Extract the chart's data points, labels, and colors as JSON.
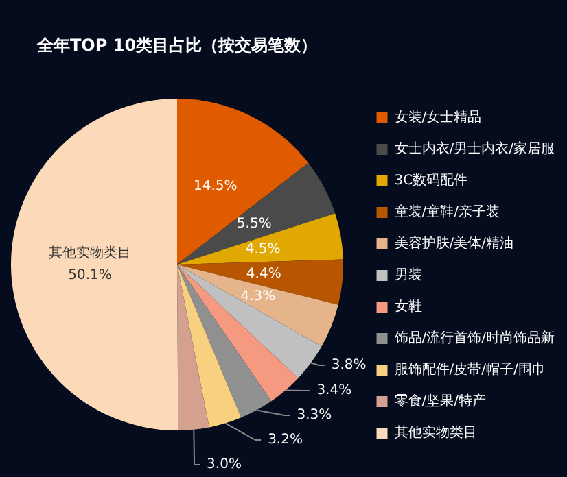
{
  "chart_data": {
    "type": "pie",
    "title": "全年TOP 10类目占比（按交易笔数）",
    "categories": [
      "女装/女士精品",
      "女士内衣/男士内衣/家居服",
      "3C数码配件",
      "童装/童鞋/亲子装",
      "美容护肤/美体/精油",
      "男装",
      "女鞋",
      "饰品/流行首饰/时尚饰品新",
      "服饰配件/皮带/帽子/围巾",
      "零食/坚果/特产",
      "其他实物类目"
    ],
    "values": [
      14.5,
      5.5,
      4.5,
      4.4,
      4.3,
      3.8,
      3.4,
      3.3,
      3.2,
      3.0,
      50.1
    ],
    "colors": [
      "#e05a00",
      "#4a4a4a",
      "#e0a800",
      "#b85500",
      "#e6b48a",
      "#c0c0c0",
      "#f59a80",
      "#909090",
      "#f7d080",
      "#d4a090",
      "#fcd9b8"
    ],
    "value_labels": [
      "14.5%",
      "5.5%",
      "4.5%",
      "4.4%",
      "4.3%",
      "3.8%",
      "3.4%",
      "3.3%",
      "3.2%",
      "3.0%",
      "50.1%"
    ],
    "legend": "right"
  }
}
